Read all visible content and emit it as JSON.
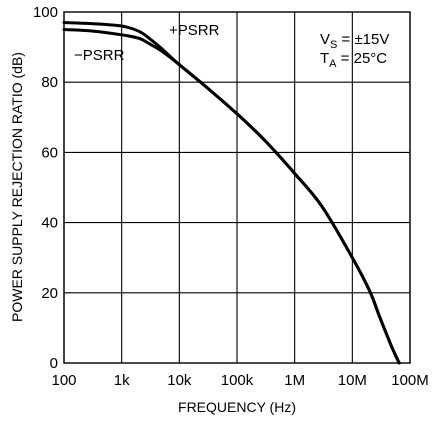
{
  "chart_data": {
    "type": "line",
    "xlabel": "FREQUENCY (Hz)",
    "ylabel": "POWER SUPPLY REJECTION RATIO (dB)",
    "x_scale": "log",
    "xlim": [
      100,
      100000000
    ],
    "ylim": [
      0,
      100
    ],
    "grid": true,
    "x_ticks": [
      {
        "value": 100,
        "label": "100"
      },
      {
        "value": 1000,
        "label": "1k"
      },
      {
        "value": 10000,
        "label": "10k"
      },
      {
        "value": 100000,
        "label": "100k"
      },
      {
        "value": 1000000,
        "label": "1M"
      },
      {
        "value": 10000000,
        "label": "10M"
      },
      {
        "value": 100000000,
        "label": "100M"
      }
    ],
    "y_ticks": [
      {
        "value": 0,
        "label": "0"
      },
      {
        "value": 20,
        "label": "20"
      },
      {
        "value": 40,
        "label": "40"
      },
      {
        "value": 60,
        "label": "60"
      },
      {
        "value": 80,
        "label": "80"
      },
      {
        "value": 100,
        "label": "100"
      }
    ],
    "series": [
      {
        "name": "+PSRR",
        "x": [
          100,
          300,
          1000,
          2000,
          3000,
          5000,
          10000,
          30000,
          100000,
          300000,
          1000000,
          3000000,
          10000000,
          20000000,
          30000000,
          50000000,
          65000000
        ],
        "y": [
          97,
          96.7,
          96,
          94.5,
          92.5,
          89.5,
          85,
          78.5,
          71,
          63.5,
          54,
          44.5,
          30,
          20.5,
          13,
          4,
          0
        ]
      },
      {
        "name": "−PSRR",
        "x": [
          100,
          300,
          1000,
          2000,
          3000,
          5000,
          10000,
          30000,
          100000,
          300000,
          1000000,
          3000000,
          10000000,
          20000000,
          30000000,
          50000000,
          65000000
        ],
        "y": [
          95,
          94.6,
          93.5,
          92.5,
          91,
          88.8,
          85,
          78.5,
          71,
          63.5,
          54,
          44.5,
          30,
          20.5,
          13,
          4,
          0
        ]
      }
    ],
    "annotations": {
      "plus_label": "+PSRR",
      "minus_label": "−PSRR",
      "vs_main": "V",
      "vs_sub": "S",
      "vs_value": " = ±15V",
      "ta_main": "T",
      "ta_sub": "A",
      "ta_value": " = 25°C"
    }
  }
}
